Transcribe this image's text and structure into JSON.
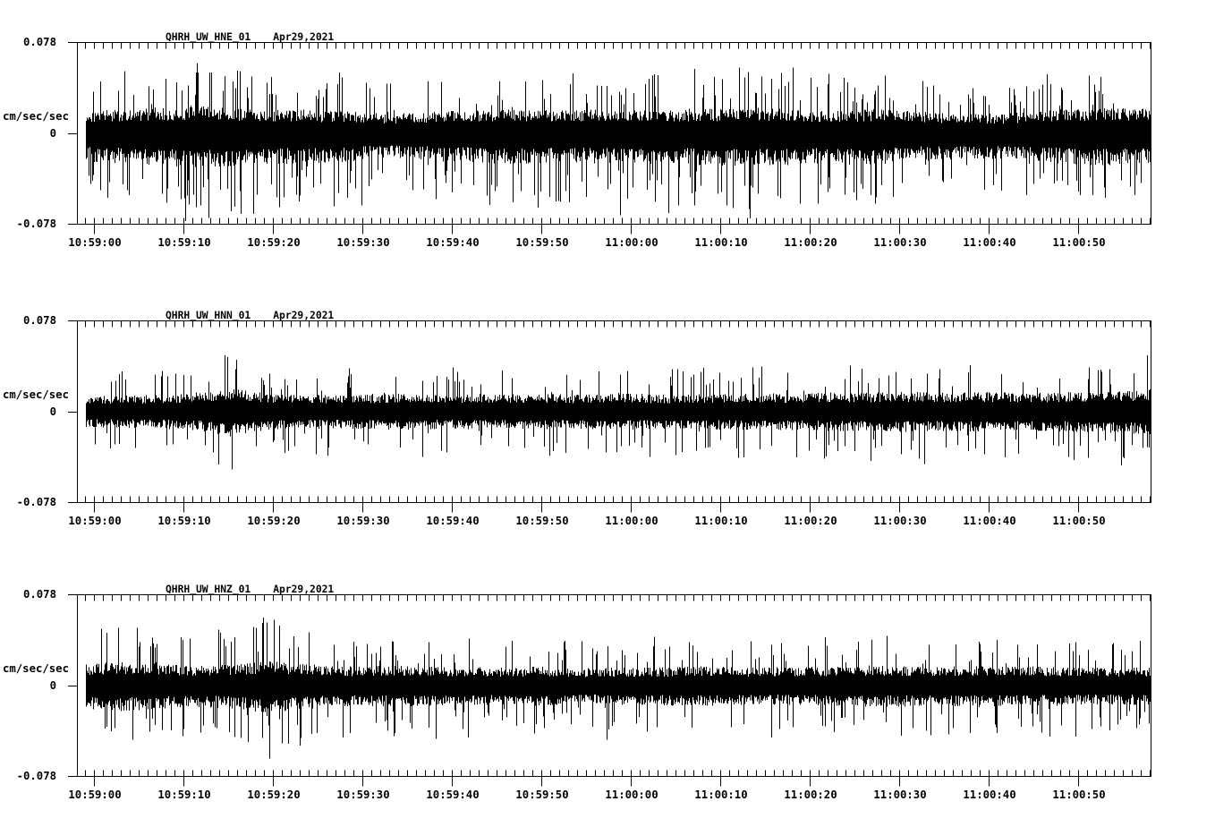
{
  "page": {
    "background_color": "#ffffff",
    "trace_color": "#000000",
    "description": "Three-component seismic accelerometer waveform display, station QHRH (UW network), channels HNE/HNN/HNZ, two minutes of data"
  },
  "chart_data": [
    {
      "type": "line",
      "kind": "seismogram",
      "station_channel": "QHRH_UW_HNE_01",
      "date": "Apr29,2021",
      "y_axis_label": "cm/sec/sec",
      "yticks": [
        "0.078",
        "0",
        "-0.078"
      ],
      "ylim": [
        -0.078,
        0.078
      ],
      "xtick_labels": [
        "10:59:00",
        "10:59:10",
        "10:59:20",
        "10:59:30",
        "10:59:40",
        "10:59:50",
        "11:00:00",
        "11:00:10",
        "11:00:20",
        "11:00:30",
        "11:00:40",
        "11:00:50"
      ],
      "xtick_seconds": [
        0,
        10,
        20,
        30,
        40,
        50,
        60,
        70,
        80,
        90,
        100,
        110
      ],
      "time_span_sec": [
        -0.9,
        118
      ],
      "grid": false,
      "legend": "none",
      "noise_seed": 101,
      "tail_prob": 0.13,
      "neg_bias": 1.32,
      "envelope_cm_s2": [
        [
          -1,
          0.024
        ],
        [
          4,
          0.025
        ],
        [
          8,
          0.027
        ],
        [
          11,
          0.03
        ],
        [
          14,
          0.028
        ],
        [
          18,
          0.026
        ],
        [
          23,
          0.025
        ],
        [
          28,
          0.024
        ],
        [
          33,
          0.02
        ],
        [
          37,
          0.023
        ],
        [
          42,
          0.024
        ],
        [
          47,
          0.026
        ],
        [
          52,
          0.024
        ],
        [
          57,
          0.026
        ],
        [
          62,
          0.025
        ],
        [
          67,
          0.026
        ],
        [
          72,
          0.027
        ],
        [
          77,
          0.027
        ],
        [
          82,
          0.024
        ],
        [
          87,
          0.026
        ],
        [
          92,
          0.023
        ],
        [
          97,
          0.021
        ],
        [
          102,
          0.021
        ],
        [
          107,
          0.025
        ],
        [
          112,
          0.027
        ],
        [
          118,
          0.026
        ]
      ],
      "notable_spikes_cm_s2": [
        [
          3.2,
          -0.044
        ],
        [
          6.1,
          0.04
        ],
        [
          9.4,
          -0.046
        ],
        [
          12.8,
          -0.073
        ],
        [
          12.9,
          0.052
        ],
        [
          16.3,
          -0.05
        ],
        [
          19.8,
          -0.044
        ],
        [
          24.5,
          -0.047
        ],
        [
          27.2,
          0.042
        ],
        [
          31.0,
          -0.04
        ],
        [
          35.6,
          -0.049
        ],
        [
          39.3,
          -0.043
        ],
        [
          44.8,
          -0.05
        ],
        [
          48.2,
          0.044
        ],
        [
          50.9,
          -0.055
        ],
        [
          54.5,
          -0.042
        ],
        [
          58.8,
          -0.048
        ],
        [
          63.4,
          -0.044
        ],
        [
          66.8,
          -0.052
        ],
        [
          70.2,
          0.046
        ],
        [
          73.6,
          -0.047
        ],
        [
          76.4,
          -0.054
        ],
        [
          81.2,
          -0.044
        ],
        [
          85.7,
          -0.04
        ],
        [
          90.3,
          -0.043
        ],
        [
          94.8,
          -0.041
        ],
        [
          100.5,
          -0.038
        ],
        [
          104.2,
          0.04
        ],
        [
          108.8,
          -0.045
        ],
        [
          112.5,
          0.048
        ],
        [
          115.8,
          -0.046
        ]
      ]
    },
    {
      "type": "line",
      "kind": "seismogram",
      "station_channel": "QHRH_UW_HNN_01",
      "date": "Apr29,2021",
      "y_axis_label": "cm/sec/sec",
      "yticks": [
        "0.078",
        "0",
        "-0.078"
      ],
      "ylim": [
        -0.078,
        0.078
      ],
      "xtick_labels": [
        "10:59:00",
        "10:59:10",
        "10:59:20",
        "10:59:30",
        "10:59:40",
        "10:59:50",
        "11:00:00",
        "11:00:10",
        "11:00:20",
        "11:00:30",
        "11:00:40",
        "11:00:50"
      ],
      "xtick_seconds": [
        0,
        10,
        20,
        30,
        40,
        50,
        60,
        70,
        80,
        90,
        100,
        110
      ],
      "time_span_sec": [
        -0.9,
        118
      ],
      "grid": false,
      "legend": "none",
      "noise_seed": 202,
      "tail_prob": 0.09,
      "neg_bias": 1.06,
      "envelope_cm_s2": [
        [
          -1,
          0.016
        ],
        [
          4,
          0.017
        ],
        [
          8,
          0.018
        ],
        [
          12,
          0.02
        ],
        [
          15,
          0.027
        ],
        [
          17,
          0.022
        ],
        [
          20,
          0.018
        ],
        [
          25,
          0.018
        ],
        [
          30,
          0.018
        ],
        [
          35,
          0.019
        ],
        [
          40,
          0.018
        ],
        [
          45,
          0.019
        ],
        [
          50,
          0.019
        ],
        [
          55,
          0.018
        ],
        [
          60,
          0.019
        ],
        [
          65,
          0.018
        ],
        [
          70,
          0.019
        ],
        [
          75,
          0.019
        ],
        [
          80,
          0.02
        ],
        [
          85,
          0.02
        ],
        [
          90,
          0.021
        ],
        [
          95,
          0.02
        ],
        [
          100,
          0.021
        ],
        [
          105,
          0.02
        ],
        [
          110,
          0.021
        ],
        [
          114,
          0.022
        ],
        [
          118,
          0.024
        ]
      ],
      "notable_spikes_cm_s2": [
        [
          1.8,
          -0.032
        ],
        [
          7.5,
          0.03
        ],
        [
          14.6,
          0.048
        ],
        [
          15.4,
          -0.05
        ],
        [
          15.9,
          0.044
        ],
        [
          22.4,
          -0.03
        ],
        [
          28.7,
          0.032
        ],
        [
          34.2,
          -0.031
        ],
        [
          40.6,
          0.034
        ],
        [
          46.3,
          -0.03
        ],
        [
          52.8,
          0.031
        ],
        [
          58.4,
          -0.035
        ],
        [
          65.2,
          0.036
        ],
        [
          71.8,
          -0.032
        ],
        [
          77.5,
          0.033
        ],
        [
          83.9,
          -0.03
        ],
        [
          89.6,
          0.034
        ],
        [
          95.2,
          -0.031
        ],
        [
          101.4,
          0.032
        ],
        [
          107.8,
          -0.03
        ],
        [
          112.6,
          0.034
        ],
        [
          117.7,
          0.048
        ],
        [
          117.9,
          -0.031
        ]
      ]
    },
    {
      "type": "line",
      "kind": "seismogram",
      "station_channel": "QHRH_UW_HNZ_01",
      "date": "Apr29,2021",
      "y_axis_label": "cm/sec/sec",
      "yticks": [
        "0.078",
        "0",
        "-0.078"
      ],
      "ylim": [
        -0.078,
        0.078
      ],
      "xtick_labels": [
        "10:59:00",
        "10:59:10",
        "10:59:20",
        "10:59:30",
        "10:59:40",
        "10:59:50",
        "11:00:00",
        "11:00:10",
        "11:00:20",
        "11:00:30",
        "11:00:40",
        "11:00:50"
      ],
      "xtick_seconds": [
        0,
        10,
        20,
        30,
        40,
        50,
        60,
        70,
        80,
        90,
        100,
        110
      ],
      "time_span_sec": [
        -0.9,
        118
      ],
      "grid": false,
      "legend": "none",
      "noise_seed": 303,
      "tail_prob": 0.11,
      "neg_bias": 1.12,
      "envelope_cm_s2": [
        [
          -1,
          0.023
        ],
        [
          3,
          0.025
        ],
        [
          7,
          0.023
        ],
        [
          11,
          0.021
        ],
        [
          14,
          0.022
        ],
        [
          17,
          0.024
        ],
        [
          19.5,
          0.027
        ],
        [
          22,
          0.024
        ],
        [
          26,
          0.021
        ],
        [
          30,
          0.02
        ],
        [
          34,
          0.021
        ],
        [
          38,
          0.02
        ],
        [
          42,
          0.019
        ],
        [
          46,
          0.019
        ],
        [
          50,
          0.02
        ],
        [
          54,
          0.018
        ],
        [
          58,
          0.019
        ],
        [
          62,
          0.019
        ],
        [
          66,
          0.02
        ],
        [
          70,
          0.02
        ],
        [
          74,
          0.019
        ],
        [
          78,
          0.019
        ],
        [
          82,
          0.02
        ],
        [
          86,
          0.021
        ],
        [
          90,
          0.021
        ],
        [
          94,
          0.02
        ],
        [
          98,
          0.021
        ],
        [
          102,
          0.02
        ],
        [
          106,
          0.02
        ],
        [
          110,
          0.019
        ],
        [
          114,
          0.019
        ],
        [
          118,
          0.019
        ]
      ],
      "notable_spikes_cm_s2": [
        [
          1.4,
          0.045
        ],
        [
          2.3,
          -0.037
        ],
        [
          4.8,
          0.049
        ],
        [
          6.2,
          -0.04
        ],
        [
          9.7,
          0.041
        ],
        [
          13.5,
          -0.036
        ],
        [
          17.8,
          0.05
        ],
        [
          18.9,
          0.058
        ],
        [
          19.6,
          -0.063
        ],
        [
          20.7,
          0.051
        ],
        [
          24.3,
          -0.042
        ],
        [
          28.6,
          -0.041
        ],
        [
          32.8,
          -0.039
        ],
        [
          37.4,
          0.037
        ],
        [
          41.9,
          0.04
        ],
        [
          47.2,
          -0.035
        ],
        [
          52.6,
          0.038
        ],
        [
          57.3,
          -0.047
        ],
        [
          61.8,
          -0.04
        ],
        [
          66.5,
          0.037
        ],
        [
          71.2,
          -0.036
        ],
        [
          76.8,
          0.036
        ],
        [
          81.4,
          -0.035
        ],
        [
          86.9,
          0.039
        ],
        [
          91.5,
          -0.037
        ],
        [
          96.3,
          0.035
        ],
        [
          100.8,
          -0.036
        ],
        [
          105.4,
          0.035
        ],
        [
          109.7,
          0.037
        ],
        [
          113.9,
          0.036
        ],
        [
          116.8,
          -0.034
        ]
      ]
    }
  ]
}
